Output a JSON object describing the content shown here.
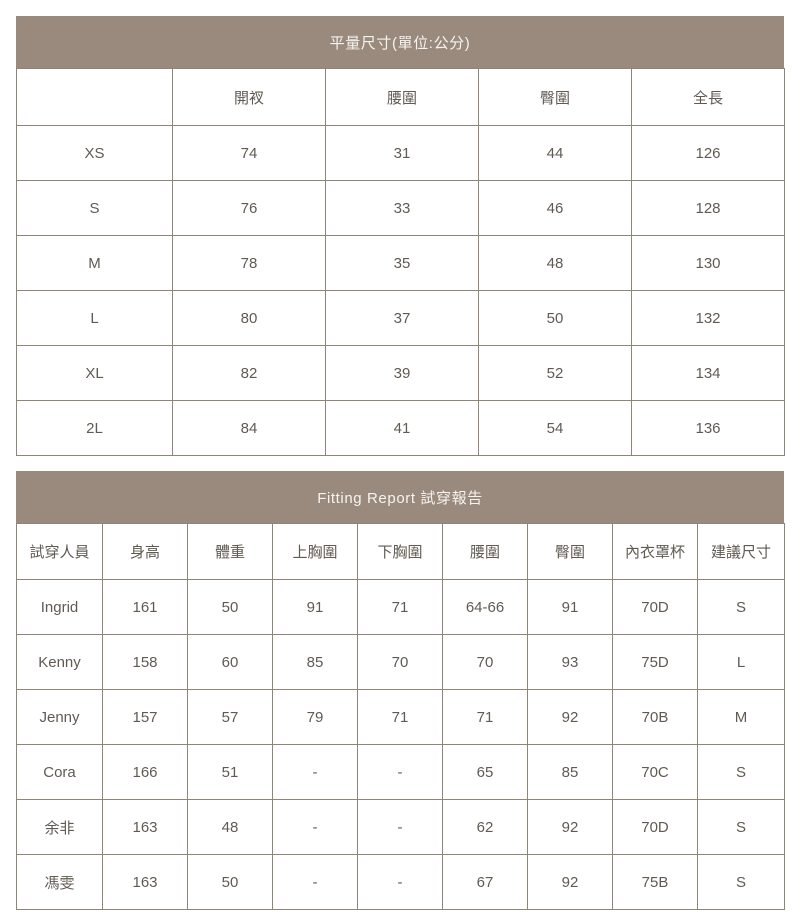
{
  "size_table": {
    "title": "平量尺寸(單位:公分)",
    "columns": [
      "",
      "開衩",
      "腰圍",
      "臀圍",
      "全長"
    ],
    "rows": [
      [
        "XS",
        "74",
        "31",
        "44",
        "126"
      ],
      [
        "S",
        "76",
        "33",
        "46",
        "128"
      ],
      [
        "M",
        "78",
        "35",
        "48",
        "130"
      ],
      [
        "L",
        "80",
        "37",
        "50",
        "132"
      ],
      [
        "XL",
        "82",
        "39",
        "52",
        "134"
      ],
      [
        "2L",
        "84",
        "41",
        "54",
        "136"
      ]
    ]
  },
  "fitting_table": {
    "title": "Fitting Report 試穿報告",
    "columns": [
      "試穿人員",
      "身高",
      "體重",
      "上胸圍",
      "下胸圍",
      "腰圍",
      "臀圍",
      "內衣罩杯",
      "建議尺寸"
    ],
    "rows": [
      [
        "Ingrid",
        "161",
        "50",
        "91",
        "71",
        "64-66",
        "91",
        "70D",
        "S"
      ],
      [
        "Kenny",
        "158",
        "60",
        "85",
        "70",
        "70",
        "93",
        "75D",
        "L"
      ],
      [
        "Jenny",
        "157",
        "57",
        "79",
        "71",
        "71",
        "92",
        "70B",
        "M"
      ],
      [
        "Cora",
        "166",
        "51",
        "-",
        "-",
        "65",
        "85",
        "70C",
        "S"
      ],
      [
        "余非",
        "163",
        "48",
        "-",
        "-",
        "62",
        "92",
        "70D",
        "S"
      ],
      [
        "馮雯",
        "163",
        "50",
        "-",
        "-",
        "67",
        "92",
        "75B",
        "S"
      ]
    ]
  },
  "colors": {
    "header_bg": "#998a7d",
    "header_text": "#f6f3ef",
    "grid_border": "#8d8577",
    "cell_text": "#605a52"
  }
}
